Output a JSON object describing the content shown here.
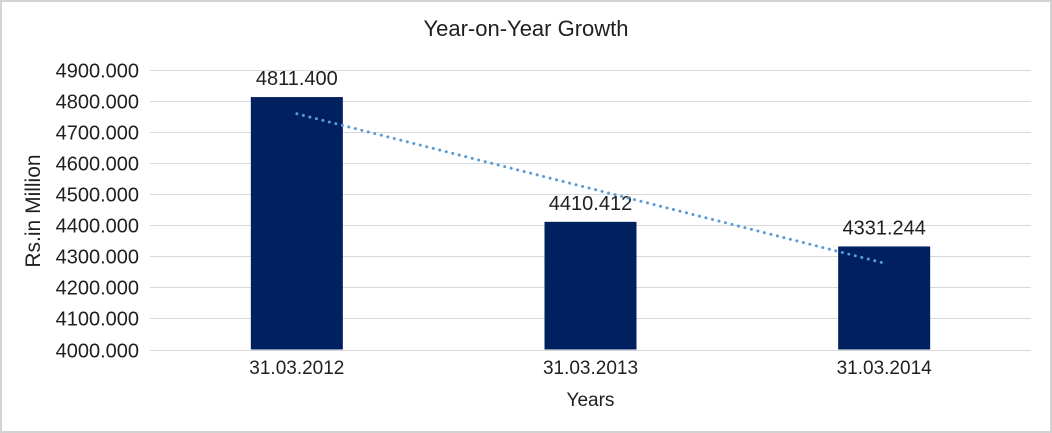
{
  "chart_data": {
    "type": "bar",
    "title": "Year-on-Year Growth",
    "xlabel": "Years",
    "ylabel": "Rs.in Million",
    "categories": [
      "31.03.2012",
      "31.03.2013",
      "31.03.2014"
    ],
    "values": [
      4811.4,
      4410.412,
      4331.244
    ],
    "data_labels": [
      "4811.400",
      "4410.412",
      "4331.244"
    ],
    "ylim": [
      4000,
      4900
    ],
    "ytick_step": 100,
    "ytick_labels": [
      "4900.000",
      "4800.000",
      "4700.000",
      "4600.000",
      "4500.000",
      "4400.000",
      "4300.000",
      "4200.000",
      "4100.000",
      "4000.000"
    ],
    "grid": true,
    "legend": "none",
    "trendline": {
      "type": "linear",
      "style": "dotted"
    },
    "colors": {
      "bar": "#002060",
      "trendline": "#5b9bd5",
      "gridline": "#d9d9d9",
      "axis_line": "#d9d9d9",
      "text": "#1f1f1f",
      "frame_border": "#d3d3d3",
      "background": "#ffffff"
    }
  }
}
